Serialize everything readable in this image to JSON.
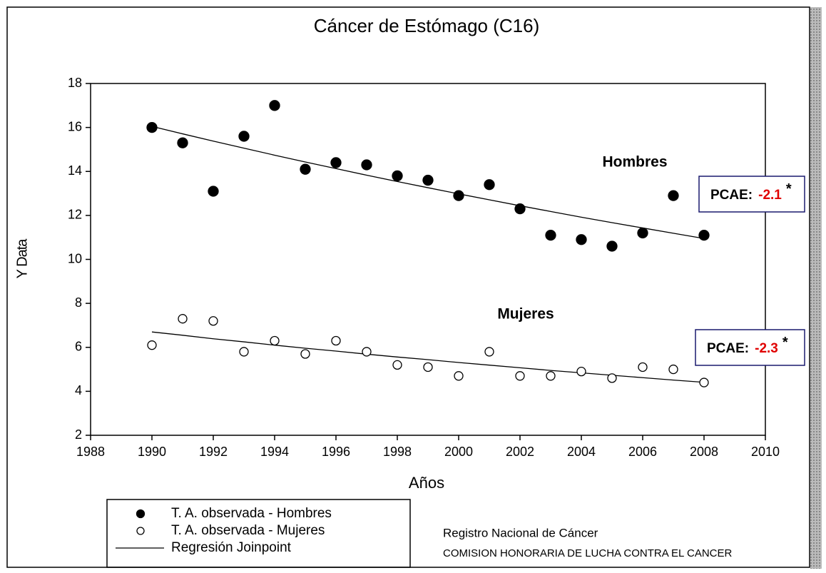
{
  "chart_data": {
    "type": "scatter",
    "title": "Cáncer de Estómago (C16)",
    "x_label": "Años",
    "y_label": "Y Data",
    "x": [
      1990,
      1991,
      1992,
      1993,
      1994,
      1995,
      1996,
      1997,
      1998,
      1999,
      2000,
      2001,
      2002,
      2003,
      2004,
      2005,
      2006,
      2007,
      2008
    ],
    "series": [
      {
        "name": "T. A.  observada - Hombres",
        "marker": "filled",
        "color": "#000000",
        "values": [
          16.0,
          15.3,
          13.1,
          15.6,
          17.0,
          14.1,
          14.4,
          14.3,
          13.8,
          13.6,
          12.9,
          13.4,
          12.3,
          11.1,
          10.9,
          10.6,
          11.2,
          12.9,
          11.1
        ]
      },
      {
        "name": "T. A.  observada - Mujeres",
        "marker": "open",
        "color": "#000000",
        "values": [
          6.1,
          7.3,
          7.2,
          5.8,
          6.3,
          5.7,
          6.3,
          5.8,
          5.2,
          5.1,
          4.7,
          5.8,
          4.7,
          4.7,
          4.9,
          4.6,
          5.1,
          5.0,
          4.4
        ]
      }
    ],
    "fit_name": "Regresión Joinpoint",
    "fits": [
      {
        "values": [
          16.05,
          15.71,
          15.38,
          15.06,
          14.74,
          14.43,
          14.13,
          13.83,
          13.54,
          13.26,
          12.98,
          12.71,
          12.44,
          12.18,
          11.92,
          11.67,
          11.43,
          11.19,
          10.95
        ]
      },
      {
        "values": [
          6.7,
          6.55,
          6.39,
          6.25,
          6.1,
          5.96,
          5.83,
          5.69,
          5.56,
          5.44,
          5.31,
          5.19,
          5.07,
          4.95,
          4.84,
          4.73,
          4.62,
          4.51,
          4.41
        ]
      }
    ],
    "group_labels": [
      "Hombres",
      "Mujeres"
    ],
    "pcae": [
      {
        "label": "PCAE:",
        "value": -2.1,
        "mark": "*"
      },
      {
        "label": "PCAE:",
        "value": -2.3,
        "mark": "*"
      }
    ],
    "xlim": [
      1988,
      2010
    ],
    "xticks": [
      1988,
      1990,
      1992,
      1994,
      1996,
      1998,
      2000,
      2002,
      2004,
      2006,
      2008,
      2010
    ],
    "ylim": [
      2,
      18
    ],
    "yticks": [
      2,
      4,
      6,
      8,
      10,
      12,
      14,
      16,
      18
    ],
    "footer": [
      "Registro Nacional de Cáncer",
      "COMISION HONORARIA DE LUCHA CONTRA EL CANCER"
    ]
  }
}
